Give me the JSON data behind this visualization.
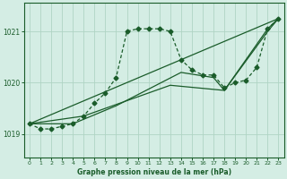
{
  "title": "Graphe pression niveau de la mer (hPa)",
  "background_color": "#d4ede4",
  "grid_color": "#b0d4c4",
  "line_color": "#1a5c2a",
  "xlim": [
    -0.5,
    23.5
  ],
  "ylim": [
    1018.55,
    1021.55
  ],
  "yticks": [
    1019,
    1020,
    1021
  ],
  "xticks": [
    0,
    1,
    2,
    3,
    4,
    5,
    6,
    7,
    8,
    9,
    10,
    11,
    12,
    13,
    14,
    15,
    16,
    17,
    18,
    19,
    20,
    21,
    22,
    23
  ],
  "main_series": {
    "x": [
      0,
      1,
      2,
      3,
      4,
      5,
      6,
      7,
      8,
      9,
      10,
      11,
      12,
      13,
      14,
      15,
      16,
      17,
      18,
      19,
      20,
      21,
      22,
      23
    ],
    "y": [
      1019.2,
      1019.1,
      1019.1,
      1019.15,
      1019.2,
      1019.35,
      1019.6,
      1019.8,
      1020.1,
      1021.0,
      1021.05,
      1021.05,
      1021.05,
      1021.0,
      1020.45,
      1020.25,
      1020.15,
      1020.15,
      1019.9,
      1020.0,
      1020.05,
      1020.3,
      1021.05,
      1021.25
    ]
  },
  "trend_lines": [
    {
      "x": [
        0,
        23
      ],
      "y": [
        1019.2,
        1021.25
      ]
    },
    {
      "x": [
        0,
        5,
        13,
        18,
        22,
        23
      ],
      "y": [
        1019.2,
        1019.35,
        1019.95,
        1019.85,
        1021.0,
        1021.25
      ]
    },
    {
      "x": [
        0,
        4,
        8,
        14,
        17,
        18,
        22,
        23
      ],
      "y": [
        1019.2,
        1019.2,
        1019.55,
        1020.2,
        1020.1,
        1019.85,
        1021.05,
        1021.25
      ]
    }
  ]
}
